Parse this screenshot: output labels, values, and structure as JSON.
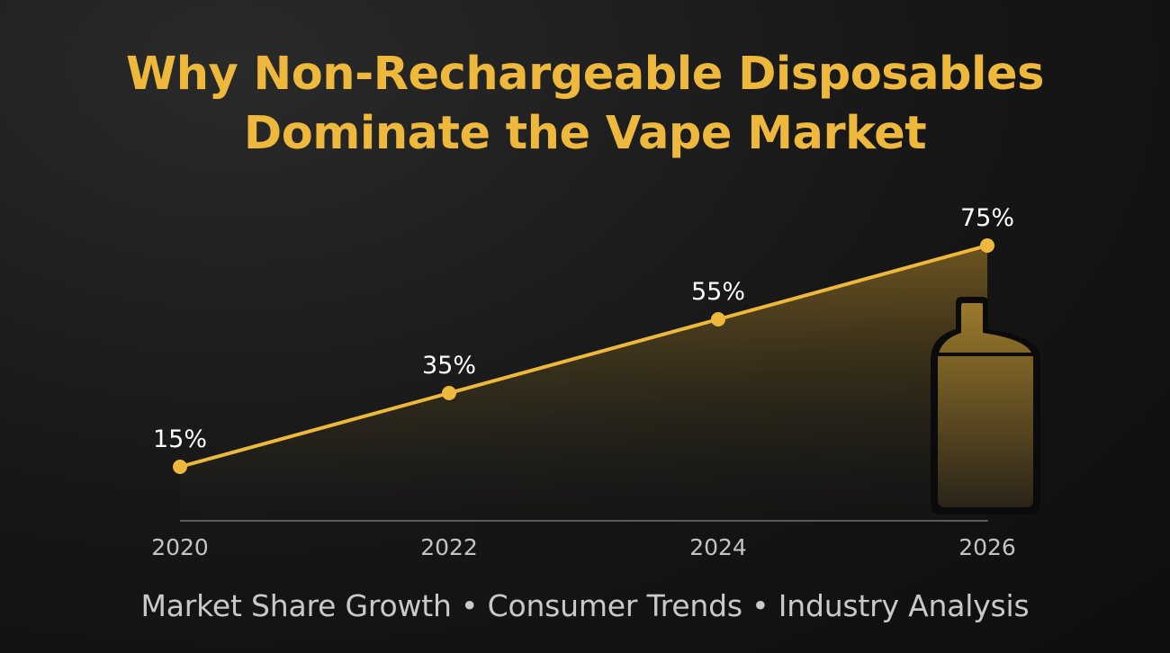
{
  "title_lines": [
    "Why Non-Rechargeable Disposables",
    "Dominate the Vape Market"
  ],
  "footer": "Market Share Growth • Consumer Trends • Industry Analysis",
  "colors": {
    "accent": "#EDB83C",
    "label": "#ffffff",
    "axis_label": "#c4c4c4",
    "axis_line": "#5a5a5a"
  },
  "chart_data": {
    "type": "area",
    "x": [
      "2020",
      "2022",
      "2024",
      "2026"
    ],
    "values": [
      15,
      35,
      55,
      75
    ],
    "data_labels": [
      "15%",
      "35%",
      "55%",
      "75%"
    ],
    "unit": "%",
    "grid": false,
    "legend": "none",
    "decoration": "disposable-vape-device-icon"
  }
}
